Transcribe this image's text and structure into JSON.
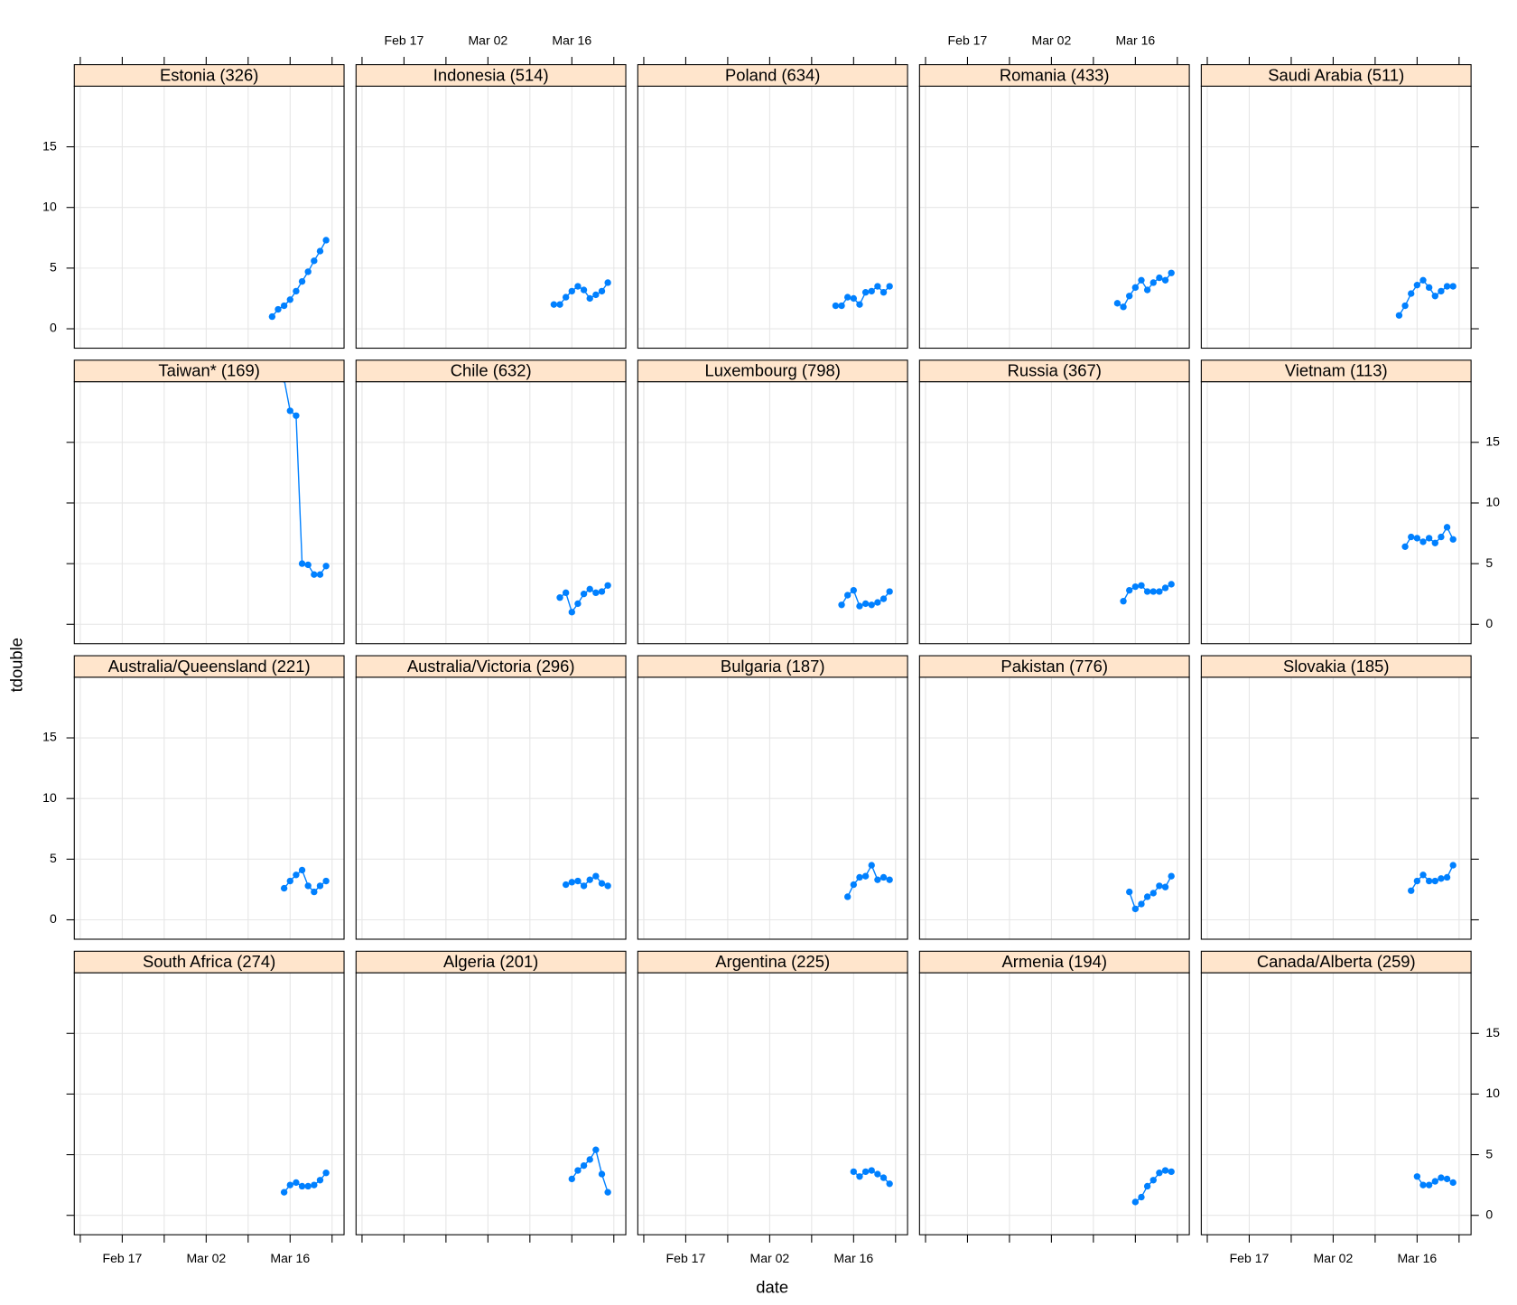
{
  "chart_data": {
    "type": "line",
    "xlabel": "date",
    "ylabel": "tdouble",
    "color": "#0080ff",
    "grid": true,
    "xlim": [
      "02-09",
      "03-25"
    ],
    "ylim": [
      -1.6,
      20
    ],
    "xticks": [
      {
        "value": "02-10",
        "label": null
      },
      {
        "value": "02-17",
        "label": "Feb 17"
      },
      {
        "value": "02-24",
        "label": null
      },
      {
        "value": "03-02",
        "label": "Mar 02"
      },
      {
        "value": "03-09",
        "label": null
      },
      {
        "value": "03-16",
        "label": "Mar 16"
      },
      {
        "value": "03-23",
        "label": null
      }
    ],
    "yticks": [
      0,
      5,
      10,
      15
    ],
    "panels": [
      {
        "title": "Estonia (326)",
        "x": [
          "03-13",
          "03-14",
          "03-15",
          "03-16",
          "03-17",
          "03-18",
          "03-19",
          "03-20",
          "03-21",
          "03-22"
        ],
        "values": [
          1.0,
          1.6,
          1.9,
          2.4,
          3.1,
          3.9,
          4.7,
          5.6,
          6.4,
          7.3
        ]
      },
      {
        "title": "Indonesia (514)",
        "x": [
          "03-13",
          "03-14",
          "03-15",
          "03-16",
          "03-17",
          "03-18",
          "03-19",
          "03-20",
          "03-21",
          "03-22"
        ],
        "values": [
          2.0,
          2.0,
          2.6,
          3.1,
          3.5,
          3.2,
          2.5,
          2.8,
          3.1,
          3.8
        ]
      },
      {
        "title": "Poland (634)",
        "x": [
          "03-13",
          "03-14",
          "03-15",
          "03-16",
          "03-17",
          "03-18",
          "03-19",
          "03-20",
          "03-21",
          "03-22"
        ],
        "values": [
          1.9,
          1.9,
          2.6,
          2.5,
          2.0,
          3.0,
          3.1,
          3.5,
          3.0,
          3.5
        ]
      },
      {
        "title": "Romania (433)",
        "x": [
          "03-13",
          "03-14",
          "03-15",
          "03-16",
          "03-17",
          "03-18",
          "03-19",
          "03-20",
          "03-21",
          "03-22"
        ],
        "values": [
          2.1,
          1.8,
          2.7,
          3.4,
          4.0,
          3.2,
          3.8,
          4.2,
          4.0,
          4.6
        ]
      },
      {
        "title": "Saudi Arabia (511)",
        "x": [
          "03-13",
          "03-14",
          "03-15",
          "03-16",
          "03-17",
          "03-18",
          "03-19",
          "03-20",
          "03-21",
          "03-22"
        ],
        "values": [
          1.1,
          1.9,
          2.9,
          3.6,
          4.0,
          3.4,
          2.7,
          3.1,
          3.5,
          3.5
        ]
      },
      {
        "title": "Taiwan* (169)",
        "x": [
          "03-15",
          "03-16",
          "03-17",
          "03-18",
          "03-19",
          "03-20",
          "03-21",
          "03-22"
        ],
        "values": [
          20.2,
          17.6,
          17.2,
          5.0,
          4.9,
          4.1,
          4.1,
          4.8
        ]
      },
      {
        "title": "Chile (632)",
        "x": [
          "03-14",
          "03-15",
          "03-16",
          "03-17",
          "03-18",
          "03-19",
          "03-20",
          "03-21",
          "03-22"
        ],
        "values": [
          2.2,
          2.6,
          1.0,
          1.7,
          2.5,
          2.9,
          2.6,
          2.7,
          3.2
        ]
      },
      {
        "title": "Luxembourg (798)",
        "x": [
          "03-14",
          "03-15",
          "03-16",
          "03-17",
          "03-18",
          "03-19",
          "03-20",
          "03-21",
          "03-22"
        ],
        "values": [
          1.6,
          2.4,
          2.8,
          1.5,
          1.7,
          1.6,
          1.8,
          2.1,
          2.7
        ]
      },
      {
        "title": "Russia (367)",
        "x": [
          "03-14",
          "03-15",
          "03-16",
          "03-17",
          "03-18",
          "03-19",
          "03-20",
          "03-21",
          "03-22"
        ],
        "values": [
          1.9,
          2.8,
          3.1,
          3.2,
          2.7,
          2.7,
          2.7,
          3.0,
          3.3
        ]
      },
      {
        "title": "Vietnam (113)",
        "x": [
          "03-14",
          "03-15",
          "03-16",
          "03-17",
          "03-18",
          "03-19",
          "03-20",
          "03-21",
          "03-22"
        ],
        "values": [
          6.4,
          7.2,
          7.1,
          6.8,
          7.1,
          6.7,
          7.2,
          8.0,
          7.0
        ]
      },
      {
        "title": "Australia/Queensland (221)",
        "x": [
          "03-15",
          "03-16",
          "03-17",
          "03-18",
          "03-19",
          "03-20",
          "03-21",
          "03-22"
        ],
        "values": [
          2.6,
          3.2,
          3.7,
          4.1,
          2.8,
          2.3,
          2.8,
          3.2
        ]
      },
      {
        "title": "Australia/Victoria (296)",
        "x": [
          "03-15",
          "03-16",
          "03-17",
          "03-18",
          "03-19",
          "03-20",
          "03-21",
          "03-22"
        ],
        "values": [
          2.9,
          3.1,
          3.2,
          2.8,
          3.3,
          3.6,
          3.0,
          2.8
        ]
      },
      {
        "title": "Bulgaria (187)",
        "x": [
          "03-15",
          "03-16",
          "03-17",
          "03-18",
          "03-19",
          "03-20",
          "03-21",
          "03-22"
        ],
        "values": [
          1.9,
          2.9,
          3.5,
          3.6,
          4.5,
          3.3,
          3.5,
          3.3
        ]
      },
      {
        "title": "Pakistan (776)",
        "x": [
          "03-15",
          "03-16",
          "03-17",
          "03-18",
          "03-19",
          "03-20",
          "03-21",
          "03-22"
        ],
        "values": [
          2.3,
          0.9,
          1.3,
          1.9,
          2.2,
          2.8,
          2.7,
          3.6
        ]
      },
      {
        "title": "Slovakia (185)",
        "x": [
          "03-15",
          "03-16",
          "03-17",
          "03-18",
          "03-19",
          "03-20",
          "03-21",
          "03-22"
        ],
        "values": [
          2.4,
          3.2,
          3.7,
          3.2,
          3.2,
          3.4,
          3.5,
          4.5
        ]
      },
      {
        "title": "South Africa (274)",
        "x": [
          "03-15",
          "03-16",
          "03-17",
          "03-18",
          "03-19",
          "03-20",
          "03-21",
          "03-22"
        ],
        "values": [
          1.9,
          2.5,
          2.7,
          2.4,
          2.4,
          2.5,
          2.9,
          3.5
        ]
      },
      {
        "title": "Algeria (201)",
        "x": [
          "03-16",
          "03-17",
          "03-18",
          "03-19",
          "03-20",
          "03-21",
          "03-22"
        ],
        "values": [
          3.0,
          3.7,
          4.1,
          4.6,
          5.4,
          3.4,
          1.9
        ]
      },
      {
        "title": "Argentina (225)",
        "x": [
          "03-16",
          "03-17",
          "03-18",
          "03-19",
          "03-20",
          "03-21",
          "03-22"
        ],
        "values": [
          3.6,
          3.2,
          3.6,
          3.7,
          3.4,
          3.1,
          2.6
        ]
      },
      {
        "title": "Armenia (194)",
        "x": [
          "03-16",
          "03-17",
          "03-18",
          "03-19",
          "03-20",
          "03-21",
          "03-22"
        ],
        "values": [
          1.1,
          1.5,
          2.4,
          2.9,
          3.5,
          3.7,
          3.6
        ]
      },
      {
        "title": "Canada/Alberta (259)",
        "x": [
          "03-16",
          "03-17",
          "03-18",
          "03-19",
          "03-20",
          "03-21",
          "03-22"
        ],
        "values": [
          3.2,
          2.5,
          2.5,
          2.8,
          3.1,
          3.0,
          2.7
        ]
      }
    ]
  }
}
